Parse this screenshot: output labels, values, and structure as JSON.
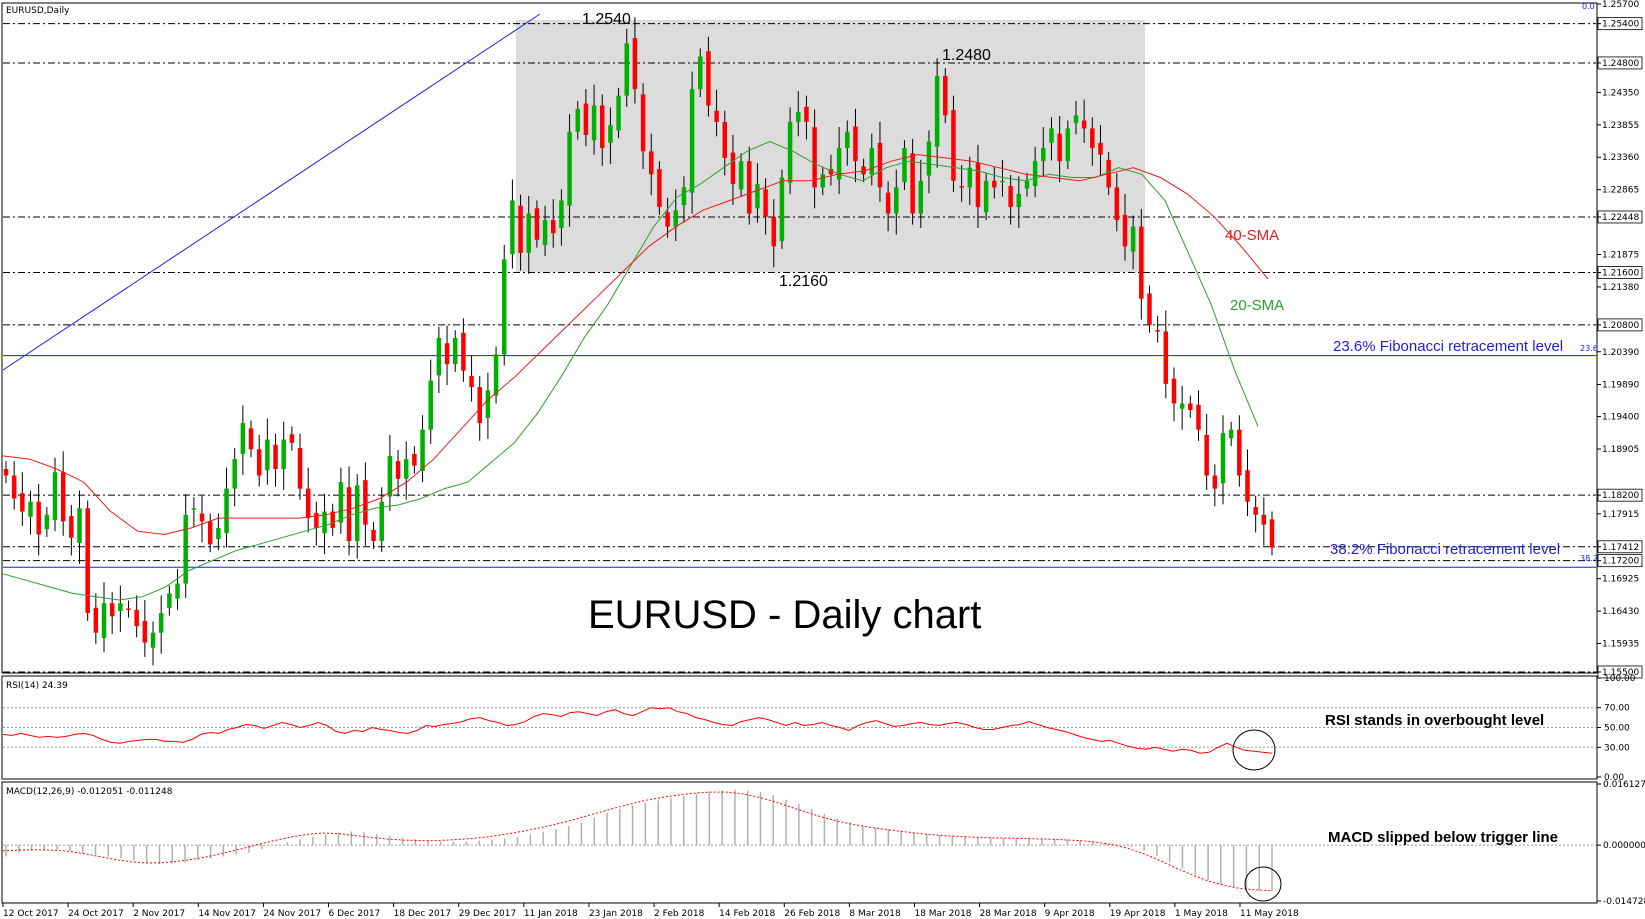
{
  "header": {
    "symbol_label": "EURUSD,Daily",
    "rsi_label": "RSI(14) 24.39",
    "macd_label": "MACD(12,26,9) -0.012051 -0.011248",
    "top_right_label": "0.0"
  },
  "colors": {
    "bull": "#00b000",
    "bear": "#ff0000",
    "sma20": "#2ca02c",
    "sma40": "#e81c1c",
    "fib": "#1f1fd6",
    "trend": "#2020e0",
    "box": "#dcdcdc",
    "rsi": "#ff0000",
    "macd_signal": "#ff0000",
    "macd_hist": "#b0b0b0"
  },
  "chart_data": [
    {
      "type": "candlestick",
      "title": "EURUSD - Daily chart",
      "ylim": [
        1.155,
        1.257
      ],
      "y_ticks": [
        "1.25700",
        "1.25400",
        "1.24800",
        "1.24350",
        "1.23855",
        "1.23360",
        "1.22865",
        "1.22448",
        "1.21875",
        "1.21600",
        "1.21380",
        "1.20800",
        "1.20390",
        "1.19890",
        "1.19400",
        "1.18905",
        "1.18200",
        "1.17915",
        "1.17412",
        "1.17200",
        "1.16925",
        "1.16430",
        "1.15935",
        "1.15500"
      ],
      "highlighted_levels": [
        "1.25400",
        "1.24800",
        "1.22448",
        "1.21600",
        "1.20800",
        "1.18200",
        "1.17412",
        "1.17200",
        "1.15500"
      ],
      "x_labels": [
        "12 Oct 2017",
        "24 Oct 2017",
        "2 Nov 2017",
        "14 Nov 2017",
        "24 Nov 2017",
        "6 Dec 2017",
        "18 Dec 2017",
        "29 Dec 2017",
        "11 Jan 2018",
        "23 Jan 2018",
        "2 Feb 2018",
        "14 Feb 2018",
        "26 Feb 2018",
        "8 Mar 2018",
        "18 Mar 2018",
        "28 Mar 2018",
        "9 Apr 2018",
        "19 Apr 2018",
        "1 May 2018",
        "11 May 2018"
      ],
      "closes": [
        1.185,
        1.1815,
        1.1795,
        1.181,
        1.176,
        1.179,
        1.1855,
        1.178,
        1.1755,
        1.18,
        1.164,
        1.161,
        1.1655,
        1.1635,
        1.1655,
        1.1645,
        1.162,
        1.1595,
        1.161,
        1.164,
        1.167,
        1.1685,
        1.179,
        1.18,
        1.178,
        1.1745,
        1.177,
        1.183,
        1.1875,
        1.193,
        1.189,
        1.185,
        1.1905,
        1.186,
        1.1905,
        1.19,
        1.183,
        1.1785,
        1.177,
        1.1795,
        1.177,
        1.184,
        1.175,
        1.1835,
        1.1775,
        1.175,
        1.181,
        1.188,
        1.1845,
        1.1875,
        1.1865,
        1.192,
        1.1995,
        1.206,
        1.202,
        1.206,
        1.201,
        1.1985,
        1.193,
        1.198,
        1.2035,
        1.218,
        1.227,
        1.219,
        1.225,
        1.221,
        1.224,
        1.222,
        1.227,
        1.2375,
        1.241,
        1.237,
        1.2415,
        1.235,
        1.2385,
        1.243,
        1.251,
        1.244,
        1.2345,
        1.231,
        1.226,
        1.223,
        1.2255,
        1.229,
        1.244,
        1.249,
        1.2415,
        1.239,
        1.2335,
        1.2295,
        1.233,
        1.225,
        1.2295,
        1.2245,
        1.22,
        1.2305,
        1.239,
        1.2405,
        1.239,
        1.229,
        1.231,
        1.231,
        1.235,
        1.2375,
        1.233,
        1.231,
        1.235,
        1.229,
        1.225,
        1.229,
        1.235,
        1.225,
        1.23,
        1.236,
        1.246,
        1.24,
        1.23,
        1.229,
        1.232,
        1.226,
        1.23,
        1.229,
        1.23,
        1.226,
        1.228,
        1.23,
        1.233,
        1.235,
        1.238,
        1.233,
        1.238,
        1.24,
        1.238,
        1.235,
        1.234,
        1.229,
        1.224,
        1.22,
        1.223,
        1.212,
        1.208,
        1.207,
        1.199,
        1.196,
        1.196,
        1.195,
        1.192,
        1.185,
        1.183,
        1.1915,
        1.192,
        1.185,
        1.181,
        1.179,
        1.1775,
        1.174
      ],
      "series": [
        {
          "name": "20-SMA",
          "values": [
            1.17,
            1.169,
            1.168,
            1.167,
            1.1665,
            1.166,
            1.1665,
            1.168,
            1.1705,
            1.172,
            1.1735,
            1.1745,
            1.1755,
            1.1765,
            1.1775,
            1.179,
            1.18,
            1.1805,
            1.1815,
            1.183,
            1.184,
            1.187,
            1.19,
            1.1945,
            1.2,
            1.206,
            1.211,
            1.217,
            1.223,
            1.2275,
            1.2295,
            1.232,
            1.2345,
            1.236,
            1.2345,
            1.2325,
            1.231,
            1.23,
            1.232,
            1.233,
            1.2325,
            1.232,
            1.2315,
            1.2305,
            1.23,
            1.231,
            1.2305,
            1.2305,
            1.232,
            1.231,
            1.227,
            1.219,
            1.211,
            1.201,
            1.1925
          ]
        },
        {
          "name": "40-SMA",
          "values": [
            1.188,
            1.1875,
            1.186,
            1.184,
            1.1795,
            1.1765,
            1.176,
            1.177,
            1.1785,
            1.1785,
            1.1785,
            1.1785,
            1.179,
            1.18,
            1.1815,
            1.184,
            1.1875,
            1.192,
            1.1965,
            1.2,
            1.204,
            1.208,
            1.212,
            1.216,
            1.22,
            1.223,
            1.2255,
            1.227,
            1.2285,
            1.23,
            1.23,
            1.231,
            1.2315,
            1.233,
            1.234,
            1.2335,
            1.233,
            1.232,
            1.231,
            1.2305,
            1.23,
            1.231,
            1.232,
            1.2305,
            1.228,
            1.2245,
            1.22,
            1.215
          ]
        },
        {
          "name": "23.6% Fibonacci retracement level",
          "values": [
            1.2033
          ]
        },
        {
          "name": "38.2% Fibonacci retracement level",
          "values": [
            1.171
          ]
        }
      ],
      "annotations": [
        "1.2540",
        "1.2480",
        "1.2160",
        "40-SMA",
        "20-SMA",
        "23.6% Fibonacci retracement level",
        "38.2% Fibonacci retracement level",
        "23.6",
        "38.2"
      ]
    },
    {
      "type": "line",
      "ylim": [
        0,
        100
      ],
      "y_ticks": [
        "100.00",
        "70.00",
        "50.00",
        "30.00",
        "0.00"
      ],
      "series": [
        {
          "name": "RSI(14)",
          "values": [
            43,
            42,
            44,
            42,
            40,
            41,
            40,
            41,
            43,
            44,
            42,
            38,
            35,
            34,
            36,
            37,
            38,
            38,
            36,
            36,
            35,
            38,
            43,
            45,
            44,
            48,
            50,
            53,
            52,
            49,
            52,
            55,
            53,
            50,
            52,
            55,
            52,
            46,
            44,
            47,
            46,
            50,
            48,
            47,
            45,
            44,
            47,
            52,
            51,
            53,
            54,
            56,
            59,
            60,
            57,
            55,
            52,
            53,
            56,
            61,
            64,
            63,
            61,
            65,
            66,
            64,
            62,
            66,
            68,
            64,
            62,
            66,
            70,
            69,
            70,
            66,
            64,
            60,
            58,
            55,
            53,
            52,
            56,
            58,
            60,
            58,
            55,
            52,
            55,
            52,
            53,
            55,
            52,
            50,
            47,
            52,
            55,
            57,
            54,
            51,
            52,
            54,
            55,
            53,
            52,
            54,
            55,
            53,
            50,
            48,
            48,
            50,
            52,
            53,
            56,
            53,
            50,
            48,
            46,
            43,
            40,
            38,
            36,
            37,
            34,
            31,
            29,
            28,
            30,
            28,
            26,
            28,
            27,
            24,
            25,
            30,
            34,
            30,
            27,
            26,
            25,
            24
          ]
        }
      ],
      "annotations": [
        "RSI stands in overbought level"
      ]
    },
    {
      "type": "bar+line",
      "ylim": [
        -0.014728,
        0.016127
      ],
      "y_ticks": [
        "0.016127",
        "0.000000",
        "-0.014728"
      ],
      "series": [
        {
          "name": "MACD histogram",
          "values": [
            -0.003,
            -0.002,
            -0.0015,
            -0.0012,
            -0.0012,
            -0.0015,
            -0.002,
            -0.0025,
            -0.003,
            -0.0035,
            -0.004,
            -0.0045,
            -0.005,
            -0.0048,
            -0.0045,
            -0.004,
            -0.0035,
            -0.003,
            -0.0025,
            -0.002,
            -0.001,
            0.0,
            0.0008,
            0.0015,
            0.0022,
            0.0028,
            0.0033,
            0.0036,
            0.0034,
            0.003,
            0.0025,
            0.002,
            0.0016,
            0.0012,
            0.001,
            0.0009,
            0.001,
            0.0012,
            0.0015,
            0.0018,
            0.0022,
            0.0028,
            0.0035,
            0.0042,
            0.005,
            0.006,
            0.0072,
            0.0085,
            0.0096,
            0.0105,
            0.0112,
            0.0118,
            0.0124,
            0.013,
            0.0136,
            0.0141,
            0.0145,
            0.0146,
            0.0144,
            0.014,
            0.0132,
            0.012,
            0.0108,
            0.0095,
            0.0082,
            0.007,
            0.006,
            0.0052,
            0.0046,
            0.0042,
            0.0038,
            0.0034,
            0.003,
            0.0027,
            0.0024,
            0.0022,
            0.0021,
            0.002,
            0.0019,
            0.0018,
            0.0018,
            0.0017,
            0.0016,
            0.0015,
            0.0013,
            0.001,
            0.0006,
            0.0001,
            -0.0005,
            -0.0015,
            -0.0028,
            -0.0045,
            -0.0062,
            -0.0078,
            -0.0092,
            -0.0105,
            -0.0112,
            -0.0118,
            -0.012,
            -0.0121
          ]
        },
        {
          "name": "Signal",
          "values": [
            -0.0015,
            -0.0013,
            -0.0012,
            -0.0013,
            -0.0016,
            -0.0022,
            -0.003,
            -0.0038,
            -0.0044,
            -0.0047,
            -0.0046,
            -0.0042,
            -0.0036,
            -0.0028,
            -0.0018,
            -0.0008,
            0.0003,
            0.0013,
            0.0022,
            0.0029,
            0.0032,
            0.003,
            0.0025,
            0.002,
            0.0016,
            0.0013,
            0.0012,
            0.0012,
            0.0014,
            0.0017,
            0.0021,
            0.0027,
            0.0034,
            0.0042,
            0.0051,
            0.0061,
            0.0073,
            0.0085,
            0.0097,
            0.0108,
            0.0118,
            0.0126,
            0.0132,
            0.0137,
            0.014,
            0.014,
            0.0136,
            0.0127,
            0.0115,
            0.0101,
            0.0087,
            0.0074,
            0.0063,
            0.0054,
            0.0047,
            0.0041,
            0.0036,
            0.0031,
            0.0027,
            0.0024,
            0.0022,
            0.002,
            0.0019,
            0.0018,
            0.0017,
            0.0016,
            0.0014,
            0.0012,
            0.0008,
            0.0002,
            -0.0008,
            -0.0022,
            -0.004,
            -0.006,
            -0.0078,
            -0.0094,
            -0.0106,
            -0.0114,
            -0.0118,
            -0.012
          ]
        }
      ],
      "annotations": [
        "MACD slipped below trigger line"
      ]
    }
  ]
}
